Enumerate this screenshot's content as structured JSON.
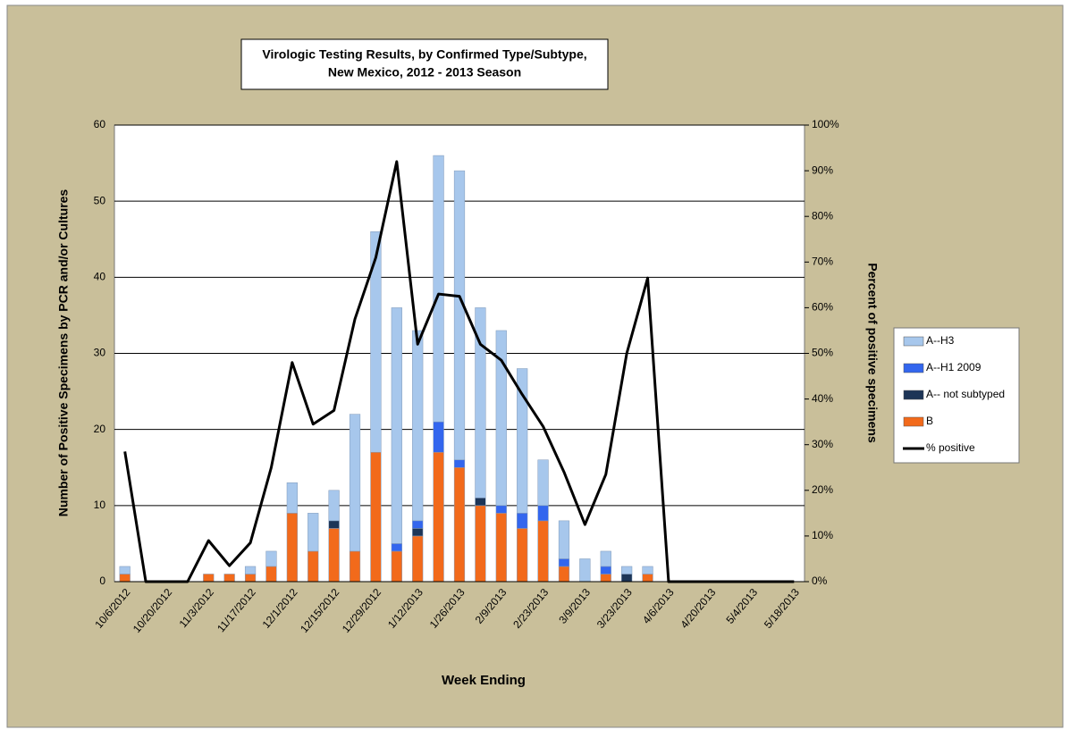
{
  "chart_data": {
    "type": "stacked-bar-line",
    "title": "Virologic Testing Results, by Confirmed Type/Subtype,",
    "subtitle": "New Mexico,  2012 - 2013 Season",
    "x_label": "Week Ending",
    "y_label": "Number of Positive Specimens by PCR and/or Cultures",
    "y2_label": "Percent of positive specimens",
    "categories": [
      "10/6/2012",
      null,
      "10/20/2012",
      null,
      "11/3/2012",
      null,
      "11/17/2012",
      null,
      "12/1/2012",
      null,
      "12/15/2012",
      null,
      "12/29/2012",
      null,
      "1/12/2013",
      null,
      "1/26/2013",
      null,
      "2/9/2013",
      null,
      "2/23/2013",
      null,
      "3/9/2013",
      null,
      "3/23/2013",
      null,
      "4/6/2013",
      null,
      "4/20/2013",
      null,
      "5/4/2013",
      null,
      "5/18/2013"
    ],
    "ylim": [
      0,
      60
    ],
    "yticks": [
      0,
      10,
      20,
      30,
      40,
      50,
      60
    ],
    "y2lim": [
      0,
      100
    ],
    "y2ticks": [
      {
        "value": 0,
        "label": "0%"
      },
      {
        "value": 10,
        "label": "10%"
      },
      {
        "value": 20,
        "label": "20%"
      },
      {
        "value": 30,
        "label": "30%"
      },
      {
        "value": 40,
        "label": "40%"
      },
      {
        "value": 50,
        "label": "50%"
      },
      {
        "value": 60,
        "label": "60%"
      },
      {
        "value": 70,
        "label": "70%"
      },
      {
        "value": 80,
        "label": "80%"
      },
      {
        "value": 90,
        "label": "90%"
      },
      {
        "value": 100,
        "label": "100%"
      }
    ],
    "grid": true,
    "series": [
      {
        "name": "B",
        "color": "#f26a1b",
        "type": "bar",
        "values": [
          1,
          0,
          0,
          0,
          1,
          1,
          1,
          2,
          9,
          4,
          7,
          4,
          17,
          4,
          6,
          17,
          15,
          10,
          9,
          7,
          8,
          2,
          0,
          1,
          0,
          1,
          0,
          0,
          0,
          0,
          0,
          0,
          0
        ]
      },
      {
        "name": "A-- not subtyped",
        "color": "#1d3557",
        "type": "bar",
        "values": [
          0,
          0,
          0,
          0,
          0,
          0,
          0,
          0,
          0,
          0,
          1,
          0,
          0,
          0,
          1,
          0,
          0,
          1,
          0,
          0,
          0,
          0,
          0,
          0,
          1,
          0,
          0,
          0,
          0,
          0,
          0,
          0,
          0
        ]
      },
      {
        "name": "A--H1 2009",
        "color": "#3366ee",
        "type": "bar",
        "values": [
          0,
          0,
          0,
          0,
          0,
          0,
          0,
          0,
          0,
          0,
          0,
          0,
          0,
          1,
          1,
          4,
          1,
          0,
          1,
          2,
          2,
          1,
          0,
          1,
          0,
          0,
          0,
          0,
          0,
          0,
          0,
          0,
          0
        ]
      },
      {
        "name": "A--H3",
        "color": "#a7c7ec",
        "type": "bar",
        "values": [
          1,
          0,
          0,
          0,
          0,
          0,
          1,
          2,
          4,
          5,
          4,
          18,
          29,
          31,
          25,
          35,
          38,
          25,
          23,
          19,
          6,
          5,
          3,
          2,
          1,
          1,
          0,
          0,
          0,
          0,
          0,
          0,
          0
        ]
      },
      {
        "name": "% positive",
        "color": "#000000",
        "type": "line",
        "axis": "y2",
        "values": [
          28.5,
          0,
          0,
          0,
          9,
          3.5,
          8.5,
          25,
          48,
          34.5,
          37.5,
          57.5,
          71,
          92,
          52,
          63,
          62.5,
          52,
          48.5,
          41,
          34,
          24,
          12.5,
          23.5,
          50,
          66.5,
          0,
          0,
          0,
          0,
          0,
          0,
          0
        ]
      }
    ],
    "legend": "right"
  }
}
